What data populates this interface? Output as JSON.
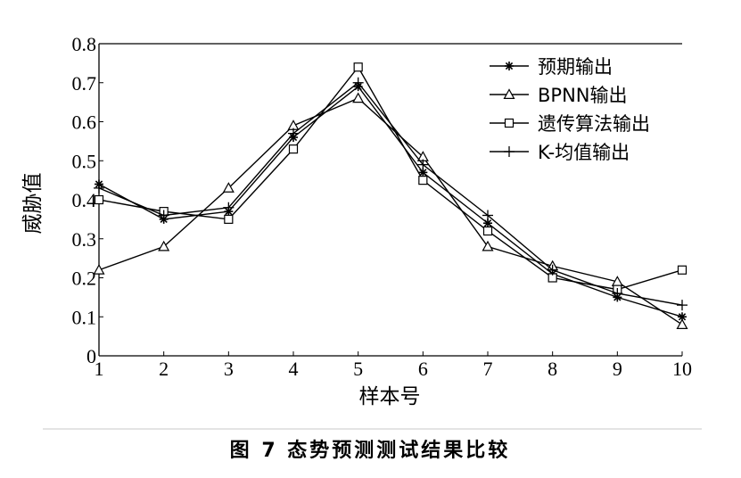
{
  "caption": "图 7 态势预测测试结果比较",
  "chart_data": {
    "type": "line",
    "title": "",
    "xlabel": "样本号",
    "ylabel": "威胁值",
    "x": [
      1,
      2,
      3,
      4,
      5,
      6,
      7,
      8,
      9,
      10
    ],
    "xlim": [
      1,
      10
    ],
    "ylim": [
      0,
      0.8
    ],
    "x_ticks": [
      "1",
      "2",
      "3",
      "4",
      "5",
      "6",
      "7",
      "8",
      "9",
      "10"
    ],
    "y_ticks": [
      "0",
      "0.1",
      "0.2",
      "0.3",
      "0.4",
      "0.5",
      "0.6",
      "0.7",
      "0.8"
    ],
    "grid": false,
    "legend_position": "top-right",
    "series": [
      {
        "name": "预期输出",
        "marker": "star",
        "values": [
          0.44,
          0.35,
          0.37,
          0.56,
          0.69,
          0.47,
          0.34,
          0.21,
          0.15,
          0.1
        ]
      },
      {
        "name": "BPNN输出",
        "marker": "triangle",
        "values": [
          0.22,
          0.28,
          0.43,
          0.59,
          0.66,
          0.51,
          0.28,
          0.23,
          0.19,
          0.08
        ]
      },
      {
        "name": "遗传算法输出",
        "marker": "square",
        "values": [
          0.4,
          0.37,
          0.35,
          0.53,
          0.74,
          0.45,
          0.32,
          0.2,
          0.17,
          0.22
        ]
      },
      {
        "name": "K-均值输出",
        "marker": "plus",
        "values": [
          0.43,
          0.36,
          0.38,
          0.57,
          0.7,
          0.49,
          0.36,
          0.22,
          0.16,
          0.13
        ]
      }
    ]
  }
}
